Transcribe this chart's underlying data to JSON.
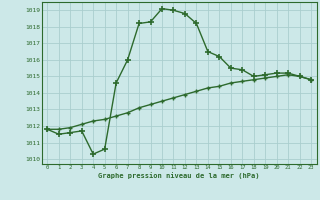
{
  "hours": [
    0,
    1,
    2,
    3,
    4,
    5,
    6,
    7,
    8,
    9,
    10,
    11,
    12,
    13,
    14,
    15,
    16,
    17,
    18,
    19,
    20,
    21,
    22,
    23
  ],
  "pressure_curve": [
    1011.8,
    1011.5,
    1011.6,
    1011.7,
    1010.3,
    1010.6,
    1014.6,
    1016.0,
    1018.2,
    1018.3,
    1019.1,
    1019.0,
    1018.8,
    1018.2,
    1016.5,
    1016.2,
    1015.5,
    1015.4,
    1015.0,
    1015.1,
    1015.2,
    1015.2,
    1015.0,
    1014.8
  ],
  "pressure_trend": [
    1011.8,
    1011.8,
    1011.9,
    1012.1,
    1012.3,
    1012.4,
    1012.6,
    1012.8,
    1013.1,
    1013.3,
    1013.5,
    1013.7,
    1013.9,
    1014.1,
    1014.3,
    1014.4,
    1014.6,
    1014.7,
    1014.8,
    1014.9,
    1015.0,
    1015.1,
    1015.0,
    1014.8
  ],
  "ylim_min": 1009.7,
  "ylim_max": 1019.5,
  "xlim_min": -0.5,
  "xlim_max": 23.5,
  "yticks": [
    1010,
    1011,
    1012,
    1013,
    1014,
    1015,
    1016,
    1017,
    1018,
    1019
  ],
  "xticks": [
    0,
    1,
    2,
    3,
    4,
    5,
    6,
    7,
    8,
    9,
    10,
    11,
    12,
    13,
    14,
    15,
    16,
    17,
    18,
    19,
    20,
    21,
    22,
    23
  ],
  "line_color": "#2d6a2d",
  "bg_color": "#cce8e8",
  "grid_color": "#aacece",
  "xlabel": "Graphe pression niveau de la mer (hPa)",
  "marker_curve": "+",
  "marker_trend": "+",
  "markersize_curve": 4,
  "markersize_trend": 3,
  "lw_curve": 1.0,
  "lw_trend": 1.0
}
